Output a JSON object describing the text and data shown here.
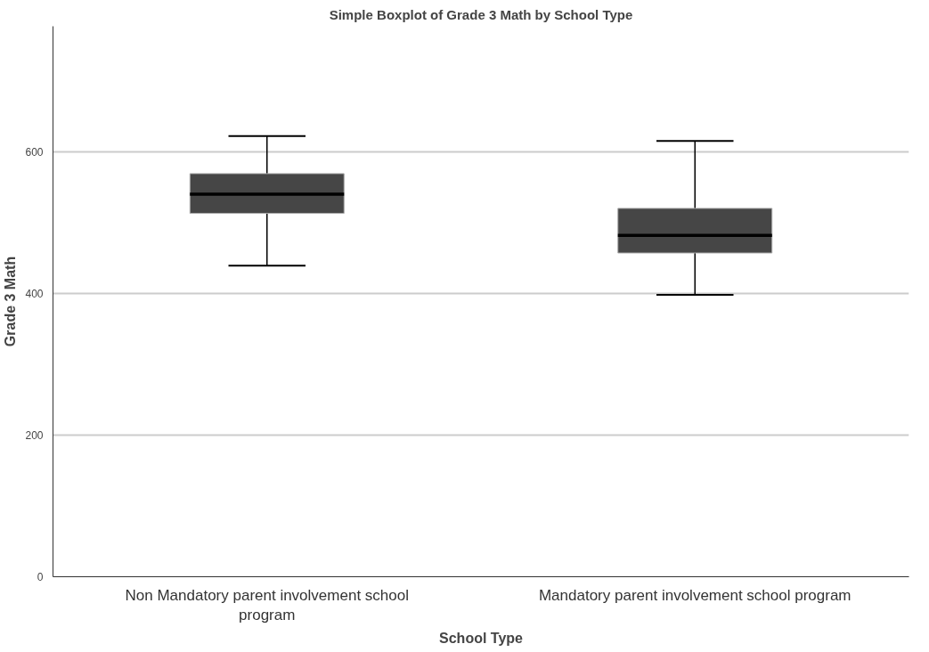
{
  "chart_data": {
    "type": "box",
    "title": "Simple Boxplot of Grade 3 Math by School Type",
    "xlabel": "School Type",
    "ylabel": "Grade 3 Math",
    "categories": [
      "Non Mandatory parent involvement school program",
      "Mandatory parent involvement school program"
    ],
    "color": "#464646",
    "boxes": [
      {
        "low": 439,
        "q1": 513,
        "median": 540,
        "q3": 569,
        "high": 622
      },
      {
        "low": 398,
        "q1": 457,
        "median": 482,
        "q3": 520,
        "high": 615
      }
    ],
    "ylim": [
      0,
      777
    ],
    "yticks": [
      0,
      200,
      400,
      600
    ],
    "grid": "y"
  }
}
